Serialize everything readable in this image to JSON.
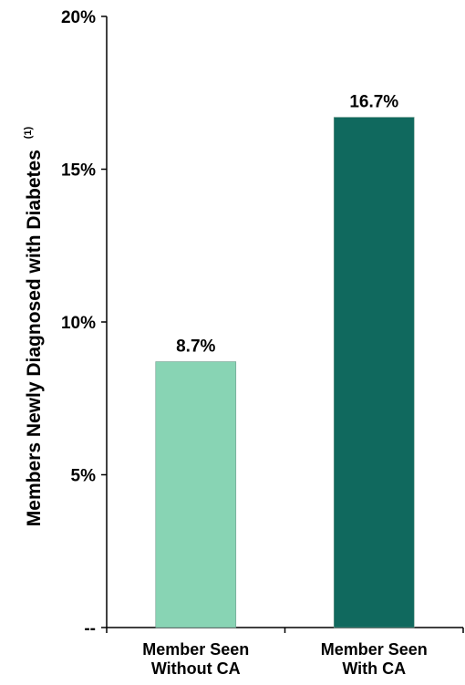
{
  "chart_data": {
    "type": "bar",
    "categories": [
      [
        "Member Seen",
        "Without CA"
      ],
      [
        "Member Seen",
        "With CA"
      ]
    ],
    "values": [
      8.7,
      16.7
    ],
    "data_labels": [
      "8.7%",
      "16.7%"
    ],
    "colors": [
      "#88d4b4",
      "#10695e"
    ],
    "ylabel": "Members Newly Diagnosed with Diabetes",
    "ylabel_superscript": "(1)",
    "xlabel": "",
    "ylim": [
      0,
      20
    ],
    "yticks": [
      0,
      5,
      10,
      15,
      20
    ],
    "ytick_labels": [
      "--",
      "5%",
      "10%",
      "15%",
      "20%"
    ],
    "grid": false,
    "legend": "none"
  }
}
